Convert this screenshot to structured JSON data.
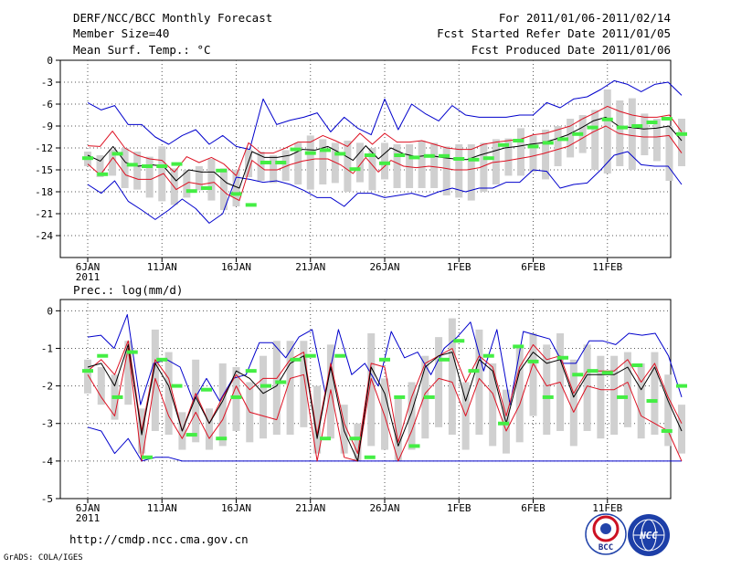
{
  "header": {
    "title": "DERF/NCC/BCC Monthly Forecast",
    "member": "Member Size=40",
    "variable": "Mean Surf. Temp.: °C",
    "period": "For 2011/01/06-2011/02/14",
    "refer": "Fcst Started Refer Date 2011/01/05",
    "produced": "Fcst Produced Date 2011/01/06"
  },
  "footer": {
    "url": "http://cmdp.ncc.cma.gov.cn",
    "credit": "GrADS: COLA/IGES",
    "logo_bcc": "BCC",
    "logo_ncc": "NCC"
  },
  "colors": {
    "spread": "#0000cc",
    "band": "#dd1122",
    "mean": "#000000",
    "box": "#d0d0d0",
    "marker": "#44ee44",
    "grid": "#555555"
  },
  "chart_data": [
    {
      "type": "line",
      "title": "Mean Surf. Temp.: °C",
      "x_ticks": [
        "6JAN",
        "11JAN",
        "16JAN",
        "21JAN",
        "26JAN",
        "1FEB",
        "6FEB",
        "11FEB"
      ],
      "x_year_label": "2011",
      "days": 40,
      "ylim": [
        -27,
        0
      ],
      "yticks": [
        0,
        -3,
        -6,
        -9,
        -12,
        -15,
        -18,
        -21,
        -24
      ],
      "series": [
        {
          "name": "max",
          "values": [
            -5.8,
            -6.8,
            -6.2,
            -8.8,
            -8.8,
            -10.5,
            -11.5,
            -10.3,
            -9.5,
            -11.5,
            -10.3,
            -11.8,
            -12.2,
            -5.3,
            -8.8,
            -8.2,
            -7.8,
            -7.2,
            -9.8,
            -7.8,
            -9.3,
            -10.2,
            -5.3,
            -9.5,
            -6.0,
            -7.3,
            -8.3,
            -6.2,
            -7.5,
            -7.8,
            -7.8,
            -7.8,
            -7.5,
            -7.5,
            -5.8,
            -6.5,
            -5.3,
            -5.0,
            -4.0,
            -2.8,
            -3.3,
            -4.3,
            -3.3,
            -3.0,
            -4.8
          ]
        },
        {
          "name": "upper",
          "values": [
            -11.7,
            -11.8,
            -9.7,
            -12.0,
            -13.0,
            -13.5,
            -13.7,
            -15.3,
            -13.2,
            -14.0,
            -13.3,
            -14.2,
            -15.8,
            -11.3,
            -12.7,
            -12.7,
            -12.0,
            -11.2,
            -11.2,
            -10.3,
            -11.0,
            -11.8,
            -10.0,
            -11.5,
            -10.0,
            -11.2,
            -11.2,
            -11.0,
            -11.5,
            -12.0,
            -12.2,
            -12.2,
            -11.5,
            -11.2,
            -11.0,
            -10.8,
            -10.2,
            -10.0,
            -9.5,
            -9.0,
            -8.0,
            -7.2,
            -6.3,
            -7.0,
            -7.5,
            -7.8,
            -7.8,
            -7.5,
            -9.8
          ]
        },
        {
          "name": "mean",
          "values": [
            -13.0,
            -13.8,
            -11.8,
            -14.0,
            -14.5,
            -14.3,
            -14.5,
            -16.5,
            -15.0,
            -15.3,
            -15.3,
            -16.8,
            -17.5,
            -12.5,
            -13.3,
            -13.3,
            -13.0,
            -12.2,
            -12.3,
            -11.8,
            -12.7,
            -13.7,
            -11.7,
            -13.5,
            -12.0,
            -12.8,
            -13.2,
            -13.0,
            -13.3,
            -13.5,
            -13.6,
            -13.0,
            -12.5,
            -12.0,
            -11.8,
            -11.5,
            -11.3,
            -10.8,
            -10.2,
            -9.3,
            -8.3,
            -7.8,
            -9.0,
            -9.2,
            -9.4,
            -9.3,
            -9.0,
            -11.0
          ]
        },
        {
          "name": "lower",
          "values": [
            -14.2,
            -15.7,
            -13.3,
            -15.7,
            -16.3,
            -16.3,
            -15.5,
            -17.7,
            -16.7,
            -17.0,
            -16.7,
            -18.3,
            -19.2,
            -13.7,
            -15.0,
            -15.0,
            -14.3,
            -13.8,
            -13.5,
            -13.5,
            -14.3,
            -15.5,
            -13.3,
            -15.3,
            -13.7,
            -14.5,
            -14.7,
            -14.5,
            -14.7,
            -15.0,
            -15.0,
            -14.7,
            -14.0,
            -13.8,
            -13.5,
            -13.2,
            -12.8,
            -12.3,
            -11.8,
            -10.8,
            -9.8,
            -9.0,
            -10.0,
            -10.3,
            -10.5,
            -10.5,
            -10.3,
            -12.7
          ]
        },
        {
          "name": "min",
          "values": [
            -17.0,
            -18.2,
            -16.5,
            -19.3,
            -20.5,
            -21.8,
            -20.5,
            -19.0,
            -20.3,
            -22.3,
            -21.0,
            -16.0,
            -16.3,
            -16.7,
            -16.5,
            -17.0,
            -17.8,
            -18.8,
            -18.8,
            -20.0,
            -18.2,
            -18.2,
            -18.8,
            -18.5,
            -18.2,
            -18.7,
            -18.0,
            -17.5,
            -18.0,
            -17.5,
            -17.5,
            -16.7,
            -16.7,
            -15.0,
            -15.2,
            -17.5,
            -17.0,
            -16.8,
            -15.0,
            -13.0,
            -12.5,
            -14.3,
            -14.5,
            -14.5,
            -17.0
          ]
        },
        {
          "name": "box_top",
          "values": [
            -12.5,
            -13.0,
            -12.2,
            -12.0,
            -12.5,
            -13.2,
            -11.8,
            -14.8,
            -15.0,
            -14.5,
            -13.5,
            -14.8,
            -15.0,
            -12.2,
            -12.5,
            -13.0,
            -12.3,
            -11.3,
            -10.3,
            -10.8,
            -11.3,
            -11.0,
            -11.3,
            -12.0,
            -11.3,
            -11.5,
            -11.5,
            -11.0,
            -11.3,
            -11.8,
            -11.5,
            -11.5,
            -11.3,
            -10.8,
            -10.7,
            -9.3,
            -10.3,
            -9.5,
            -9.0,
            -8.0,
            -7.5,
            -6.8,
            -4.0,
            -5.5,
            -5.2,
            -7.3,
            -8.0,
            -9.0,
            -8.0
          ]
        },
        {
          "name": "box_bottom",
          "values": [
            -14.5,
            -16.0,
            -15.8,
            -17.5,
            -17.7,
            -18.8,
            -19.3,
            -19.8,
            -18.8,
            -17.8,
            -19.2,
            -20.5,
            -20.0,
            -16.0,
            -16.5,
            -16.8,
            -16.5,
            -17.0,
            -17.7,
            -17.0,
            -16.8,
            -18.0,
            -16.7,
            -17.8,
            -16.3,
            -17.5,
            -17.5,
            -17.5,
            -17.5,
            -18.5,
            -18.8,
            -19.2,
            -18.0,
            -17.0,
            -15.8,
            -15.8,
            -15.3,
            -16.3,
            -14.5,
            -13.3,
            -12.7,
            -15.0,
            -15.5,
            -14.5,
            -15.0,
            -13.0,
            -13.8,
            -16.5,
            -14.5
          ]
        },
        {
          "name": "marker",
          "values": [
            -13.4,
            -15.6,
            -12.8,
            -14.3,
            -14.5,
            -14.5,
            -14.2,
            -17.9,
            -17.5,
            -15.1,
            -18.3,
            -19.8,
            -14.0,
            -14.0,
            -12.2,
            -12.7,
            -12.3,
            -12.8,
            -14.9,
            -13.0,
            -14.1,
            -13.0,
            -13.3,
            -13.1,
            -13.1,
            -13.5,
            -13.6,
            -13.4,
            -11.6,
            -11.0,
            -11.8,
            -11.3,
            -10.8,
            -10.1,
            -9.2,
            -8.1,
            -9.2,
            -9.0,
            -8.5,
            -8.0,
            -10.1
          ]
        }
      ]
    },
    {
      "type": "line",
      "title": "Prec.: log(mm/d)",
      "x_ticks": [
        "6JAN",
        "11JAN",
        "16JAN",
        "21JAN",
        "26JAN",
        "1FEB",
        "6FEB",
        "11FEB"
      ],
      "x_year_label": "2011",
      "days": 40,
      "ylim": [
        -5,
        0.3
      ],
      "yticks": [
        0,
        -1,
        -2,
        -3,
        -4,
        -5
      ],
      "series": [
        {
          "name": "max",
          "values": [
            -0.7,
            -0.65,
            -1.0,
            -0.1,
            -2.5,
            -1.4,
            -1.3,
            -1.5,
            -2.4,
            -1.8,
            -2.4,
            -1.8,
            -1.7,
            -0.85,
            -0.85,
            -1.25,
            -0.7,
            -0.5,
            -2.2,
            -0.5,
            -1.7,
            -1.4,
            -2.0,
            -0.55,
            -1.25,
            -1.1,
            -1.7,
            -1.0,
            -0.7,
            -0.3,
            -1.6,
            -0.5,
            -2.5,
            -0.55,
            -0.65,
            -0.75,
            -1.4,
            -1.4,
            -0.8,
            -0.8,
            -0.9,
            -0.6,
            -0.65,
            -0.6,
            -1.2,
            -2.3
          ]
        },
        {
          "name": "upper",
          "values": [
            -1.6,
            -1.3,
            -1.7,
            -0.8,
            -3.2,
            -1.3,
            -1.8,
            -3.2,
            -2.2,
            -3.0,
            -2.3,
            -1.7,
            -2.1,
            -1.8,
            -1.8,
            -1.3,
            -1.1,
            -3.3,
            -1.4,
            -3.0,
            -3.8,
            -1.4,
            -1.5,
            -3.5,
            -2.3,
            -1.4,
            -1.2,
            -1.0,
            -1.9,
            -1.2,
            -1.5,
            -2.8,
            -1.5,
            -0.9,
            -1.3,
            -1.2,
            -2.2,
            -1.6,
            -1.6,
            -1.6,
            -1.3,
            -1.9,
            -1.4,
            -2.3,
            -3.0
          ]
        },
        {
          "name": "mean",
          "values": [
            -1.5,
            -1.4,
            -2.0,
            -0.9,
            -3.3,
            -1.4,
            -2.0,
            -3.2,
            -2.3,
            -3.0,
            -2.4,
            -1.6,
            -1.8,
            -2.2,
            -2.0,
            -1.4,
            -1.2,
            -3.4,
            -1.5,
            -3.2,
            -4.0,
            -1.5,
            -2.2,
            -3.6,
            -2.7,
            -1.5,
            -1.2,
            -1.1,
            -2.4,
            -1.3,
            -1.6,
            -3.0,
            -1.6,
            -1.1,
            -1.4,
            -1.3,
            -2.3,
            -1.7,
            -1.7,
            -1.7,
            -1.5,
            -2.1,
            -1.5,
            -2.4,
            -3.2
          ]
        },
        {
          "name": "lower",
          "values": [
            -1.7,
            -2.3,
            -2.8,
            -1.0,
            -4.0,
            -1.8,
            -2.8,
            -3.4,
            -2.7,
            -3.4,
            -2.9,
            -2.0,
            -2.7,
            -2.8,
            -2.9,
            -1.8,
            -1.7,
            -4.0,
            -2.1,
            -3.9,
            -4.0,
            -1.8,
            -2.8,
            -4.0,
            -3.2,
            -2.2,
            -1.8,
            -1.9,
            -2.8,
            -1.8,
            -2.2,
            -3.2,
            -2.5,
            -1.4,
            -2.0,
            -1.9,
            -2.7,
            -2.0,
            -2.1,
            -2.1,
            -1.9,
            -2.8,
            -3.0,
            -3.2,
            -4.0
          ]
        },
        {
          "name": "min",
          "values": [
            -3.1,
            -3.2,
            -3.8,
            -3.4,
            -4.0,
            -3.9,
            -3.9,
            -4.0,
            -4.0,
            -4.0,
            -4.0,
            -4.0,
            -4.0,
            -4.0,
            -4.0,
            -4.0,
            -4.0,
            -4.0,
            -4.0,
            -4.0,
            -4.0,
            -4.0,
            -4.0,
            -4.0,
            -4.0,
            -4.0,
            -4.0,
            -4.0,
            -4.0,
            -4.0,
            -4.0,
            -4.0,
            -4.0,
            -4.0,
            -4.0,
            -4.0,
            -4.0,
            -4.0,
            -4.0,
            -4.0,
            -4.0,
            -4.0,
            -4.0,
            -4.0,
            -4.0
          ]
        },
        {
          "name": "box_top",
          "values": [
            -1.3,
            -1.5,
            -1.7,
            -0.8,
            -2.6,
            -0.5,
            -1.1,
            -2.7,
            -1.3,
            -2.6,
            -1.4,
            -1.5,
            -1.9,
            -1.2,
            -0.8,
            -0.8,
            -0.8,
            -2.0,
            -0.9,
            -2.5,
            -3.0,
            -0.6,
            -1.8,
            -2.3,
            -1.9,
            -1.2,
            -0.7,
            -0.2,
            -1.9,
            -0.5,
            -1.4,
            -2.1,
            -1.0,
            -0.6,
            -0.9,
            -0.6,
            -1.3,
            -0.9,
            -1.2,
            -1.2,
            -1.1,
            -1.4,
            -1.1,
            -1.7,
            -2.5
          ]
        },
        {
          "name": "box_bottom",
          "values": [
            -2.2,
            -2.5,
            -2.9,
            -2.5,
            -3.8,
            -3.2,
            -3.3,
            -3.7,
            -3.5,
            -3.7,
            -3.6,
            -3.2,
            -3.5,
            -3.4,
            -3.3,
            -3.3,
            -3.1,
            -3.8,
            -3.4,
            -3.8,
            -4.0,
            -3.6,
            -3.7,
            -4.0,
            -3.7,
            -3.4,
            -3.1,
            -3.3,
            -3.7,
            -3.3,
            -3.6,
            -3.8,
            -3.5,
            -2.8,
            -3.3,
            -3.2,
            -3.6,
            -3.2,
            -3.4,
            -3.3,
            -3.1,
            -3.4,
            -3.3,
            -3.6,
            -3.8
          ]
        },
        {
          "name": "marker",
          "values": [
            -1.6,
            -1.2,
            -2.3,
            -1.1,
            -3.9,
            -1.3,
            -2.0,
            -3.3,
            -2.1,
            -3.4,
            -2.3,
            -1.6,
            -2.0,
            -1.9,
            -1.3,
            -1.2,
            -3.4,
            -1.2,
            -3.4,
            -3.9,
            -1.3,
            -2.3,
            -3.6,
            -2.3,
            -1.3,
            -0.8,
            -1.6,
            -1.2,
            -3.0,
            -0.95,
            -1.35,
            -2.3,
            -1.25,
            -1.7,
            -1.6,
            -1.65,
            -2.3,
            -1.45,
            -2.4,
            -3.2,
            -2.0
          ]
        }
      ]
    }
  ]
}
